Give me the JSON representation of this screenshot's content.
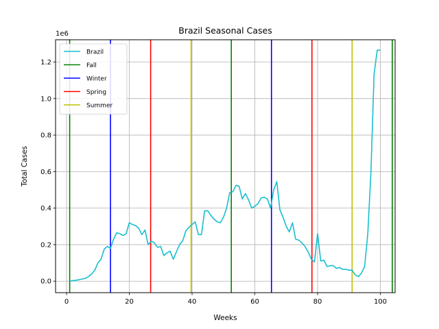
{
  "chart_data": {
    "type": "line",
    "title": "Brazil Seasonal Cases",
    "xlabel": "Weeks",
    "ylabel": "Total Cases",
    "y_offset_label": "1e6",
    "xlim": [
      -3.5,
      104.7
    ],
    "ylim": [
      -0.063,
      1.322
    ],
    "xticks": [
      0,
      20,
      40,
      60,
      80,
      100
    ],
    "xtick_labels": [
      "0",
      "20",
      "40",
      "60",
      "80",
      "100"
    ],
    "yticks": [
      0.0,
      0.2,
      0.4,
      0.6,
      0.8,
      1.0,
      1.2
    ],
    "ytick_labels": [
      "0.0",
      "0.2",
      "0.4",
      "0.6",
      "0.8",
      "1.0",
      "1.2"
    ],
    "grid": true,
    "legend_position": "top-left",
    "series": [
      {
        "name": "Brazil",
        "color": "#17becf",
        "x": [
          1,
          2,
          3,
          4,
          5,
          6,
          7,
          8,
          9,
          10,
          11,
          12,
          13,
          14,
          15,
          16,
          17,
          18,
          19,
          20,
          21,
          22,
          23,
          24,
          25,
          26,
          27,
          28,
          29,
          30,
          31,
          32,
          33,
          34,
          35,
          36,
          37,
          38,
          39,
          40,
          41,
          42,
          43,
          44,
          45,
          46,
          47,
          48,
          49,
          50,
          51,
          52,
          53,
          54,
          55,
          56,
          57,
          58,
          59,
          60,
          61,
          62,
          63,
          64,
          65,
          66,
          67,
          68,
          69,
          70,
          71,
          72,
          73,
          74,
          75,
          76,
          77,
          78,
          79,
          80,
          81,
          82,
          83,
          84,
          85,
          86,
          87,
          88,
          89,
          90,
          91,
          92,
          93,
          94,
          95,
          96,
          97,
          98,
          99,
          100
        ],
        "y": [
          0.0,
          0.003,
          0.005,
          0.008,
          0.012,
          0.015,
          0.025,
          0.04,
          0.06,
          0.1,
          0.12,
          0.175,
          0.19,
          0.18,
          0.23,
          0.265,
          0.26,
          0.25,
          0.26,
          0.32,
          0.31,
          0.305,
          0.29,
          0.255,
          0.28,
          0.2,
          0.22,
          0.21,
          0.185,
          0.19,
          0.14,
          0.155,
          0.165,
          0.12,
          0.16,
          0.2,
          0.22,
          0.275,
          0.295,
          0.31,
          0.325,
          0.255,
          0.255,
          0.385,
          0.385,
          0.36,
          0.34,
          0.325,
          0.32,
          0.35,
          0.4,
          0.485,
          0.49,
          0.525,
          0.52,
          0.45,
          0.48,
          0.445,
          0.4,
          0.41,
          0.425,
          0.455,
          0.46,
          0.45,
          0.4,
          0.5,
          0.545,
          0.39,
          0.35,
          0.3,
          0.27,
          0.32,
          0.23,
          0.225,
          0.21,
          0.19,
          0.16,
          0.12,
          0.105,
          0.26,
          0.11,
          0.115,
          0.08,
          0.085,
          0.085,
          0.07,
          0.075,
          0.065,
          0.065,
          0.06,
          0.06,
          0.035,
          0.025,
          0.045,
          0.08,
          0.26,
          0.6,
          1.13,
          1.265,
          1.265
        ]
      }
    ],
    "vlines": [
      {
        "name": "Fall",
        "color": "#008000",
        "x": [
          1,
          52.5,
          103.8
        ]
      },
      {
        "name": "Winter",
        "color": "#0000ff",
        "x": [
          14,
          65.3
        ]
      },
      {
        "name": "Spring",
        "color": "#ff0000",
        "x": [
          26.8,
          78.2
        ]
      },
      {
        "name": "Summer",
        "color": "#bfbf00",
        "x": [
          39.7,
          91
        ]
      }
    ]
  }
}
